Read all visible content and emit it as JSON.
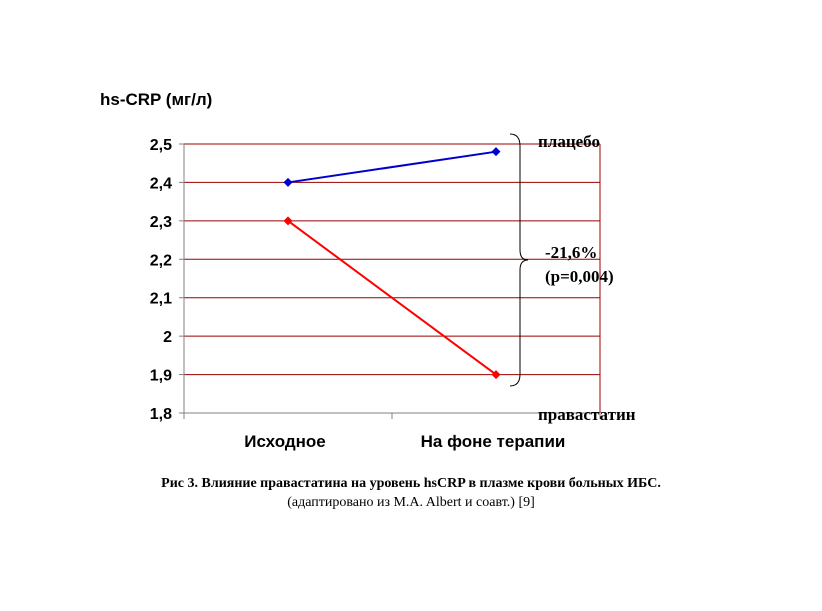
{
  "chart_data": {
    "type": "line",
    "ylabel": "hs-CRP (мг/л)",
    "categories": [
      "Исходное",
      "На фоне терапии"
    ],
    "ylim": [
      1.8,
      2.5
    ],
    "yticks": [
      "2,5",
      "2,4",
      "2,3",
      "2,2",
      "2,1",
      "2",
      "1,9",
      "1,8"
    ],
    "ytick_values": [
      2.5,
      2.4,
      2.3,
      2.2,
      2.1,
      2.0,
      1.9,
      1.8
    ],
    "grid": true,
    "series": [
      {
        "name": "плацебо",
        "values": [
          2.4,
          2.48
        ],
        "color": "#0000cc"
      },
      {
        "name": "правастатин",
        "values": [
          2.3,
          1.9
        ],
        "color": "#ff0000"
      }
    ],
    "annotation": {
      "line1": "-21,6%",
      "line2": "(p=0,004)"
    },
    "gridline_color": "#990000"
  },
  "caption": {
    "line1": "Рис 3. Влияние правастатина на уровень hsCRP в плазме крови больных ИБС.",
    "line2": "(адаптировано из M.A. Albert и соавт.) [9]"
  }
}
